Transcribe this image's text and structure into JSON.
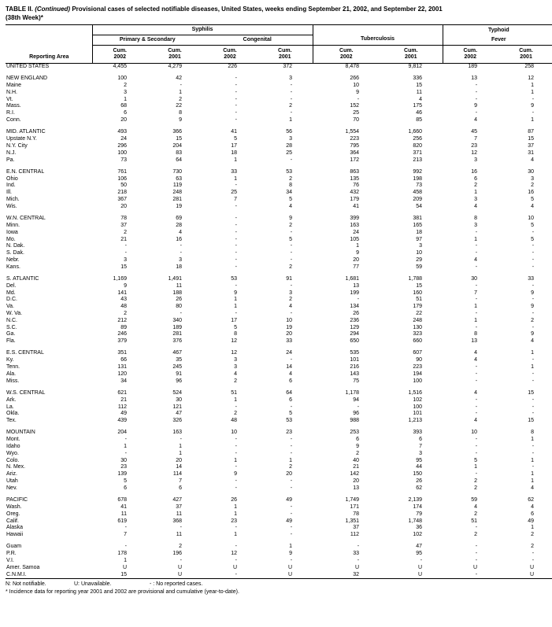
{
  "title": {
    "table_label": "TABLE II.",
    "continued": "(Continued)",
    "rest": "Provisional cases of selected notifiable diseases, United States, weeks ending September 21, 2002, and September 22, 2001",
    "line2": "(38th Week)*"
  },
  "header": {
    "reporting_area": "Reporting Area",
    "syphilis": "Syphilis",
    "primary_secondary": "Primary & Secondary",
    "congenital": "Congenital",
    "tuberculosis": "Tuberculosis",
    "typhoid_line1": "Typhoid",
    "typhoid_line2": "Fever",
    "cum": "Cum.",
    "y2002": "2002",
    "y2001": "2001"
  },
  "table": {
    "groups": [
      {
        "gap_before": false,
        "rows": [
          {
            "area": "UNITED STATES",
            "values": [
              "4,455",
              "4,279",
              "226",
              "372",
              "8,478",
              "9,812",
              "189",
              "258"
            ]
          }
        ]
      },
      {
        "gap_before": true,
        "rows": [
          {
            "area": "NEW ENGLAND",
            "values": [
              "100",
              "42",
              "-",
              "3",
              "266",
              "336",
              "13",
              "12"
            ]
          },
          {
            "area": "Maine",
            "values": [
              "2",
              "-",
              "-",
              "-",
              "10",
              "15",
              "-",
              "1"
            ]
          },
          {
            "area": "N.H.",
            "values": [
              "3",
              "1",
              "-",
              "-",
              "9",
              "11",
              "-",
              "1"
            ]
          },
          {
            "area": "Vt.",
            "values": [
              "1",
              "2",
              "-",
              "-",
              "-",
              "4",
              "-",
              "-"
            ]
          },
          {
            "area": "Mass.",
            "values": [
              "68",
              "22",
              "-",
              "2",
              "152",
              "175",
              "9",
              "9"
            ]
          },
          {
            "area": "R.I.",
            "values": [
              "6",
              "8",
              "-",
              "-",
              "25",
              "46",
              "-",
              "-"
            ]
          },
          {
            "area": "Conn.",
            "values": [
              "20",
              "9",
              "-",
              "1",
              "70",
              "85",
              "4",
              "1"
            ]
          }
        ]
      },
      {
        "gap_before": true,
        "rows": [
          {
            "area": "MID. ATLANTIC",
            "values": [
              "493",
              "366",
              "41",
              "56",
              "1,554",
              "1,660",
              "45",
              "87"
            ]
          },
          {
            "area": "Upstate N.Y.",
            "values": [
              "24",
              "15",
              "5",
              "3",
              "223",
              "256",
              "7",
              "15"
            ]
          },
          {
            "area": "N.Y. City",
            "values": [
              "296",
              "204",
              "17",
              "28",
              "795",
              "820",
              "23",
              "37"
            ]
          },
          {
            "area": "N.J.",
            "values": [
              "100",
              "83",
              "18",
              "25",
              "364",
              "371",
              "12",
              "31"
            ]
          },
          {
            "area": "Pa.",
            "values": [
              "73",
              "64",
              "1",
              "-",
              "172",
              "213",
              "3",
              "4"
            ]
          }
        ]
      },
      {
        "gap_before": true,
        "rows": [
          {
            "area": "E.N. CENTRAL",
            "values": [
              "761",
              "730",
              "33",
              "53",
              "863",
              "992",
              "16",
              "30"
            ]
          },
          {
            "area": "Ohio",
            "values": [
              "106",
              "63",
              "1",
              "2",
              "135",
              "198",
              "6",
              "3"
            ]
          },
          {
            "area": "Ind.",
            "values": [
              "50",
              "119",
              "-",
              "8",
              "76",
              "73",
              "2",
              "2"
            ]
          },
          {
            "area": "Ill.",
            "values": [
              "218",
              "248",
              "25",
              "34",
              "432",
              "458",
              "1",
              "16"
            ]
          },
          {
            "area": "Mich.",
            "values": [
              "367",
              "281",
              "7",
              "5",
              "179",
              "209",
              "3",
              "5"
            ]
          },
          {
            "area": "Wis.",
            "values": [
              "20",
              "19",
              "-",
              "4",
              "41",
              "54",
              "4",
              "4"
            ]
          }
        ]
      },
      {
        "gap_before": true,
        "rows": [
          {
            "area": "W.N. CENTRAL",
            "values": [
              "78",
              "69",
              "-",
              "9",
              "399",
              "381",
              "8",
              "10"
            ]
          },
          {
            "area": "Minn.",
            "values": [
              "37",
              "28",
              "-",
              "2",
              "163",
              "165",
              "3",
              "5"
            ]
          },
          {
            "area": "Iowa",
            "values": [
              "2",
              "4",
              "-",
              "-",
              "24",
              "18",
              "-",
              "-"
            ]
          },
          {
            "area": "Mo.",
            "values": [
              "21",
              "16",
              "-",
              "5",
              "105",
              "97",
              "1",
              "5"
            ]
          },
          {
            "area": "N. Dak.",
            "values": [
              "-",
              "-",
              "-",
              "-",
              "1",
              "3",
              "-",
              "-"
            ]
          },
          {
            "area": "S. Dak.",
            "values": [
              "-",
              "-",
              "-",
              "-",
              "9",
              "10",
              "-",
              "-"
            ]
          },
          {
            "area": "Nebr.",
            "values": [
              "3",
              "3",
              "-",
              "-",
              "20",
              "29",
              "4",
              "-"
            ]
          },
          {
            "area": "Kans.",
            "values": [
              "15",
              "18",
              "-",
              "2",
              "77",
              "59",
              "-",
              "-"
            ]
          }
        ]
      },
      {
        "gap_before": true,
        "rows": [
          {
            "area": "S. ATLANTIC",
            "values": [
              "1,169",
              "1,491",
              "53",
              "91",
              "1,681",
              "1,788",
              "30",
              "33"
            ]
          },
          {
            "area": "Del.",
            "values": [
              "9",
              "11",
              "-",
              "-",
              "13",
              "15",
              "-",
              "-"
            ]
          },
          {
            "area": "Md.",
            "values": [
              "141",
              "188",
              "9",
              "3",
              "199",
              "160",
              "7",
              "9"
            ]
          },
          {
            "area": "D.C.",
            "values": [
              "43",
              "26",
              "1",
              "2",
              "-",
              "51",
              "-",
              "-"
            ]
          },
          {
            "area": "Va.",
            "values": [
              "48",
              "80",
              "1",
              "4",
              "134",
              "179",
              "1",
              "9"
            ]
          },
          {
            "area": "W. Va.",
            "values": [
              "2",
              "-",
              "-",
              "-",
              "26",
              "22",
              "-",
              "-"
            ]
          },
          {
            "area": "N.C.",
            "values": [
              "212",
              "340",
              "17",
              "10",
              "236",
              "248",
              "1",
              "2"
            ]
          },
          {
            "area": "S.C.",
            "values": [
              "89",
              "189",
              "5",
              "19",
              "129",
              "130",
              "-",
              "-"
            ]
          },
          {
            "area": "Ga.",
            "values": [
              "246",
              "281",
              "8",
              "20",
              "294",
              "323",
              "8",
              "9"
            ]
          },
          {
            "area": "Fla.",
            "values": [
              "379",
              "376",
              "12",
              "33",
              "650",
              "660",
              "13",
              "4"
            ]
          }
        ]
      },
      {
        "gap_before": true,
        "rows": [
          {
            "area": "E.S. CENTRAL",
            "values": [
              "351",
              "467",
              "12",
              "24",
              "535",
              "607",
              "4",
              "1"
            ]
          },
          {
            "area": "Ky.",
            "values": [
              "66",
              "35",
              "3",
              "-",
              "101",
              "90",
              "4",
              "-"
            ]
          },
          {
            "area": "Tenn.",
            "values": [
              "131",
              "245",
              "3",
              "14",
              "216",
              "223",
              "-",
              "1"
            ]
          },
          {
            "area": "Ala.",
            "values": [
              "120",
              "91",
              "4",
              "4",
              "143",
              "194",
              "-",
              "-"
            ]
          },
          {
            "area": "Miss.",
            "values": [
              "34",
              "96",
              "2",
              "6",
              "75",
              "100",
              "-",
              "-"
            ]
          }
        ]
      },
      {
        "gap_before": true,
        "rows": [
          {
            "area": "W.S. CENTRAL",
            "values": [
              "621",
              "524",
              "51",
              "64",
              "1,178",
              "1,516",
              "4",
              "15"
            ]
          },
          {
            "area": "Ark.",
            "values": [
              "21",
              "30",
              "1",
              "6",
              "94",
              "102",
              "-",
              "-"
            ]
          },
          {
            "area": "La.",
            "values": [
              "112",
              "121",
              "-",
              "-",
              "-",
              "100",
              "-",
              "-"
            ]
          },
          {
            "area": "Okla.",
            "values": [
              "49",
              "47",
              "2",
              "5",
              "96",
              "101",
              "-",
              "-"
            ]
          },
          {
            "area": "Tex.",
            "values": [
              "439",
              "326",
              "48",
              "53",
              "988",
              "1,213",
              "4",
              "15"
            ]
          }
        ]
      },
      {
        "gap_before": true,
        "rows": [
          {
            "area": "MOUNTAIN",
            "values": [
              "204",
              "163",
              "10",
              "23",
              "253",
              "393",
              "10",
              "8"
            ]
          },
          {
            "area": "Mont.",
            "values": [
              "-",
              "-",
              "-",
              "-",
              "6",
              "6",
              "-",
              "1"
            ]
          },
          {
            "area": "Idaho",
            "values": [
              "1",
              "1",
              "-",
              "-",
              "9",
              "7",
              "-",
              "-"
            ]
          },
          {
            "area": "Wyo.",
            "values": [
              "-",
              "1",
              "-",
              "-",
              "2",
              "3",
              "-",
              "-"
            ]
          },
          {
            "area": "Colo.",
            "values": [
              "30",
              "20",
              "1",
              "1",
              "40",
              "95",
              "5",
              "1"
            ]
          },
          {
            "area": "N. Mex.",
            "values": [
              "23",
              "14",
              "-",
              "2",
              "21",
              "44",
              "1",
              "-"
            ]
          },
          {
            "area": "Ariz.",
            "values": [
              "139",
              "114",
              "9",
              "20",
              "142",
              "150",
              "-",
              "1"
            ]
          },
          {
            "area": "Utah",
            "values": [
              "5",
              "7",
              "-",
              "-",
              "20",
              "26",
              "2",
              "1"
            ]
          },
          {
            "area": "Nev.",
            "values": [
              "6",
              "6",
              "-",
              "-",
              "13",
              "62",
              "2",
              "4"
            ]
          }
        ]
      },
      {
        "gap_before": true,
        "rows": [
          {
            "area": "PACIFIC",
            "values": [
              "678",
              "427",
              "26",
              "49",
              "1,749",
              "2,139",
              "59",
              "62"
            ]
          },
          {
            "area": "Wash.",
            "values": [
              "41",
              "37",
              "1",
              "-",
              "171",
              "174",
              "4",
              "4"
            ]
          },
          {
            "area": "Oreg.",
            "values": [
              "11",
              "11",
              "1",
              "-",
              "78",
              "79",
              "2",
              "6"
            ]
          },
          {
            "area": "Calif.",
            "values": [
              "619",
              "368",
              "23",
              "49",
              "1,351",
              "1,748",
              "51",
              "49"
            ]
          },
          {
            "area": "Alaska",
            "values": [
              "-",
              "-",
              "-",
              "-",
              "37",
              "36",
              "-",
              "1"
            ]
          },
          {
            "area": "Hawaii",
            "values": [
              "7",
              "11",
              "1",
              "-",
              "112",
              "102",
              "2",
              "2"
            ]
          }
        ]
      },
      {
        "gap_before": true,
        "rows": [
          {
            "area": "Guam",
            "values": [
              "-",
              "2",
              "-",
              "1",
              "-",
              "47",
              "-",
              "2"
            ]
          },
          {
            "area": "P.R.",
            "values": [
              "178",
              "196",
              "12",
              "9",
              "33",
              "95",
              "-",
              "-"
            ]
          },
          {
            "area": "V.I.",
            "values": [
              "1",
              "-",
              "-",
              "-",
              "-",
              "-",
              "-",
              "-"
            ]
          },
          {
            "area": "Amer. Samoa",
            "values": [
              "U",
              "U",
              "U",
              "U",
              "U",
              "U",
              "U",
              "U"
            ]
          },
          {
            "area": "C.N.M.I.",
            "values": [
              "15",
              "U",
              "-",
              "U",
              "32",
              "U",
              "-",
              "U"
            ]
          }
        ]
      }
    ]
  },
  "footnotes": {
    "line1_a": "N: Not notifiable.",
    "line1_b": "U: Unavailable.",
    "line1_c": "- : No reported cases.",
    "line2": "* Incidence data for reporting year 2001 and 2002 are provisional and cumulative (year-to-date)."
  }
}
